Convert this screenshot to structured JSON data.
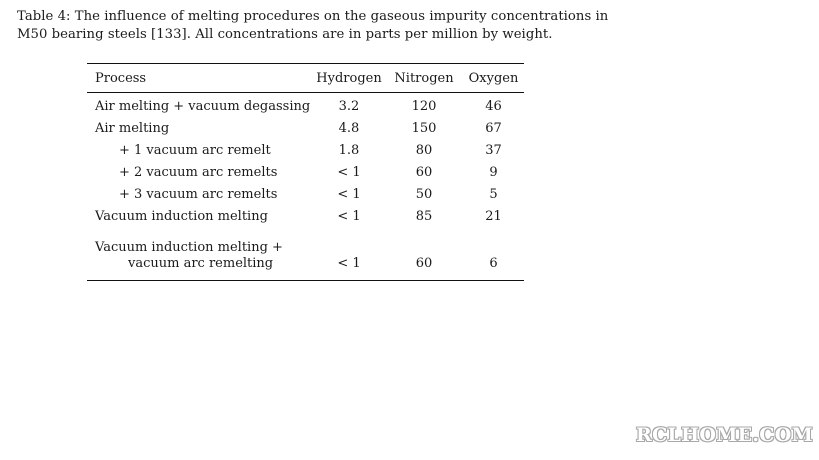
{
  "caption": {
    "line1": "Table 4:  The influence of melting procedures on the gaseous impurity concentrations in",
    "line2": "M50 bearing steels [133].  All concentrations are in parts per million by weight."
  },
  "table": {
    "headers": [
      "Process",
      "Hydrogen",
      "Nitrogen",
      "Oxygen"
    ],
    "rows": [
      {
        "process": "Air melting + vacuum degassing",
        "hydrogen": "3.2",
        "nitrogen": "120",
        "oxygen": "46"
      },
      {
        "process": "Air melting",
        "hydrogen": "4.8",
        "nitrogen": "150",
        "oxygen": "67"
      },
      {
        "process": "+ 1 vacuum arc remelt",
        "hydrogen": "1.8",
        "nitrogen": "80",
        "oxygen": "37"
      },
      {
        "process": "+ 2 vacuum arc remelts",
        "hydrogen": "< 1",
        "nitrogen": "60",
        "oxygen": "9"
      },
      {
        "process": "+ 3 vacuum arc remelts",
        "hydrogen": "< 1",
        "nitrogen": "50",
        "oxygen": "5"
      },
      {
        "process": "Vacuum induction melting",
        "hydrogen": "< 1",
        "nitrogen": "85",
        "oxygen": "21"
      },
      {
        "process": "Vacuum induction melting +",
        "hydrogen": "",
        "nitrogen": "",
        "oxygen": ""
      },
      {
        "process": "vacuum arc remelting",
        "hydrogen": "< 1",
        "nitrogen": "60",
        "oxygen": "6"
      }
    ]
  },
  "watermark": "RCLHOME.COM"
}
